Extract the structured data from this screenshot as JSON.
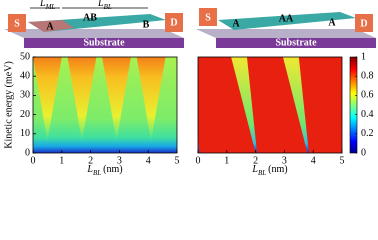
{
  "left_schematic": {
    "source": "S",
    "drain": "D",
    "regions": [
      "A",
      "AB",
      "B"
    ],
    "lengths": [
      {
        "symbol": "L",
        "subscript": "ML"
      },
      {
        "symbol": "L",
        "subscript": "BL"
      }
    ],
    "substrate": "Substrate"
  },
  "right_schematic": {
    "source": "S",
    "drain": "D",
    "regions": [
      "A",
      "AA",
      "A"
    ],
    "substrate": "Substrate"
  },
  "plots": [
    {
      "ylabel": "Kinetic energy (meV)",
      "xlabel": {
        "symbol": "L",
        "subscript": "BL",
        "unit": "(nm)"
      },
      "xlim": [
        0,
        5
      ],
      "xticks": [
        0,
        1,
        2,
        3,
        4,
        5
      ],
      "ylim": [
        0,
        50
      ],
      "yticks": [
        0,
        10,
        20,
        30,
        40,
        50
      ]
    },
    {
      "xlabel": {
        "symbol": "L",
        "subscript": "BL",
        "unit": "(nm)"
      },
      "xlim": [
        0,
        5
      ],
      "xticks": [
        0,
        1,
        2,
        3,
        4,
        5
      ],
      "ylim": [
        0,
        50
      ],
      "colorbar": {
        "lim": [
          0,
          1
        ],
        "ticks": [
          0,
          0.2,
          0.4,
          0.6,
          0.8,
          1
        ]
      }
    }
  ]
}
